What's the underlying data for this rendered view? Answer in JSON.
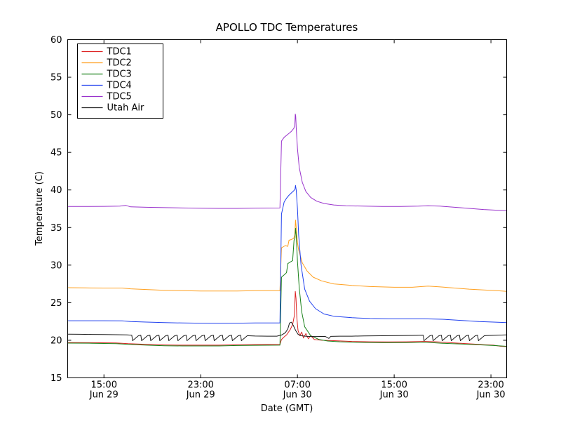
{
  "figure": {
    "background": "#ffffff",
    "frame_color": "#000000",
    "text_color": "#000000"
  },
  "chart_data": {
    "type": "line",
    "title": "APOLLO TDC Temperatures",
    "xlabel": "Date (GMT)",
    "ylabel": "Temperature (C)",
    "grid": false,
    "legend_position": "upper-left",
    "ylim": [
      15,
      60
    ],
    "xlim": [
      12,
      48.3
    ],
    "y_ticks": [
      15,
      20,
      25,
      30,
      35,
      40,
      45,
      50,
      55,
      60
    ],
    "x_ticks": [
      {
        "x": 15,
        "line1": "15:00",
        "line2": "Jun 29"
      },
      {
        "x": 23,
        "line1": "23:00",
        "line2": "Jun 29"
      },
      {
        "x": 31,
        "line1": "07:00",
        "line2": "Jun 30"
      },
      {
        "x": 39,
        "line1": "15:00",
        "line2": "Jun 30"
      },
      {
        "x": 47,
        "line1": "23:00",
        "line2": "Jun 30"
      }
    ],
    "series": [
      {
        "name": "TDC1",
        "color": "#dd2222",
        "points": [
          [
            12,
            19.7
          ],
          [
            14,
            19.68
          ],
          [
            16,
            19.65
          ],
          [
            17,
            19.55
          ],
          [
            18.5,
            19.45
          ],
          [
            20,
            19.38
          ],
          [
            21.5,
            19.35
          ],
          [
            23,
            19.35
          ],
          [
            24.5,
            19.35
          ],
          [
            26,
            19.4
          ],
          [
            27.5,
            19.43
          ],
          [
            29.55,
            19.45
          ],
          [
            29.68,
            20.1
          ],
          [
            29.9,
            20.45
          ],
          [
            30.1,
            20.7
          ],
          [
            30.4,
            21.4
          ],
          [
            30.6,
            22.1
          ],
          [
            30.75,
            23.3
          ],
          [
            30.82,
            26.5
          ],
          [
            30.88,
            25.6
          ],
          [
            30.95,
            23.0
          ],
          [
            31.05,
            21.3
          ],
          [
            31.2,
            20.6
          ],
          [
            31.35,
            21.1
          ],
          [
            31.5,
            20.3
          ],
          [
            31.7,
            20.9
          ],
          [
            31.9,
            20.2
          ],
          [
            32.1,
            20.6
          ],
          [
            32.4,
            20.1
          ],
          [
            33,
            20.0
          ],
          [
            34,
            19.95
          ],
          [
            35.5,
            19.85
          ],
          [
            37,
            19.8
          ],
          [
            38.5,
            19.78
          ],
          [
            40,
            19.8
          ],
          [
            41.5,
            19.85
          ],
          [
            42.5,
            19.8
          ],
          [
            43.5,
            19.7
          ],
          [
            44.5,
            19.6
          ],
          [
            45.5,
            19.5
          ],
          [
            46.5,
            19.4
          ],
          [
            47.2,
            19.35
          ],
          [
            47.8,
            19.2
          ],
          [
            48.3,
            19.15
          ]
        ]
      },
      {
        "name": "TDC2",
        "color": "#ffa020",
        "points": [
          [
            12,
            27.0
          ],
          [
            13.5,
            26.97
          ],
          [
            15,
            26.95
          ],
          [
            16.5,
            26.95
          ],
          [
            17.2,
            26.85
          ],
          [
            18.5,
            26.75
          ],
          [
            20,
            26.65
          ],
          [
            21.5,
            26.6
          ],
          [
            23,
            26.55
          ],
          [
            24.5,
            26.55
          ],
          [
            26,
            26.55
          ],
          [
            27.5,
            26.6
          ],
          [
            29.55,
            26.6
          ],
          [
            29.68,
            32.3
          ],
          [
            30.0,
            32.6
          ],
          [
            30.2,
            32.5
          ],
          [
            30.3,
            33.3
          ],
          [
            30.5,
            33.4
          ],
          [
            30.7,
            33.6
          ],
          [
            30.78,
            34.0
          ],
          [
            30.84,
            36.0
          ],
          [
            30.9,
            35.0
          ],
          [
            31.0,
            33.0
          ],
          [
            31.1,
            32.0
          ],
          [
            31.4,
            30.3
          ],
          [
            31.8,
            29.2
          ],
          [
            32.3,
            28.4
          ],
          [
            33,
            27.9
          ],
          [
            34,
            27.5
          ],
          [
            35.5,
            27.3
          ],
          [
            37,
            27.15
          ],
          [
            39,
            27.05
          ],
          [
            40.5,
            27.05
          ],
          [
            41.8,
            27.2
          ],
          [
            42.8,
            27.1
          ],
          [
            44,
            26.95
          ],
          [
            45.2,
            26.8
          ],
          [
            46.4,
            26.7
          ],
          [
            47.5,
            26.6
          ],
          [
            48.3,
            26.5
          ]
        ]
      },
      {
        "name": "TDC3",
        "color": "#188018",
        "points": [
          [
            12,
            19.62
          ],
          [
            14,
            19.6
          ],
          [
            16,
            19.55
          ],
          [
            17,
            19.45
          ],
          [
            18.5,
            19.35
          ],
          [
            20,
            19.28
          ],
          [
            21.5,
            19.25
          ],
          [
            23,
            19.25
          ],
          [
            24.5,
            19.25
          ],
          [
            26,
            19.3
          ],
          [
            27.5,
            19.33
          ],
          [
            29.55,
            19.35
          ],
          [
            29.68,
            28.4
          ],
          [
            29.9,
            28.7
          ],
          [
            30.1,
            29.0
          ],
          [
            30.2,
            30.2
          ],
          [
            30.4,
            30.4
          ],
          [
            30.6,
            30.6
          ],
          [
            30.72,
            33.3
          ],
          [
            30.8,
            33.6
          ],
          [
            30.84,
            34.9
          ],
          [
            30.9,
            34.0
          ],
          [
            31.0,
            30.5
          ],
          [
            31.15,
            27.0
          ],
          [
            31.35,
            23.8
          ],
          [
            31.6,
            21.8
          ],
          [
            32.1,
            20.6
          ],
          [
            32.8,
            20.1
          ],
          [
            33.5,
            19.9
          ],
          [
            34.5,
            19.8
          ],
          [
            36,
            19.72
          ],
          [
            38,
            19.68
          ],
          [
            40,
            19.7
          ],
          [
            41.5,
            19.75
          ],
          [
            43,
            19.6
          ],
          [
            44.5,
            19.5
          ],
          [
            46,
            19.4
          ],
          [
            47.2,
            19.3
          ],
          [
            48.3,
            19.2
          ]
        ]
      },
      {
        "name": "TDC4",
        "color": "#2040ee",
        "points": [
          [
            12,
            22.6
          ],
          [
            13.5,
            22.6
          ],
          [
            15,
            22.6
          ],
          [
            16.5,
            22.58
          ],
          [
            17.2,
            22.5
          ],
          [
            18.5,
            22.42
          ],
          [
            20,
            22.35
          ],
          [
            21.5,
            22.3
          ],
          [
            23,
            22.27
          ],
          [
            24.5,
            22.25
          ],
          [
            26,
            22.27
          ],
          [
            27.5,
            22.3
          ],
          [
            29.55,
            22.3
          ],
          [
            29.68,
            36.8
          ],
          [
            29.9,
            38.4
          ],
          [
            30.1,
            38.9
          ],
          [
            30.3,
            39.3
          ],
          [
            30.5,
            39.6
          ],
          [
            30.7,
            39.9
          ],
          [
            30.8,
            40.1
          ],
          [
            30.84,
            40.6
          ],
          [
            30.9,
            40.0
          ],
          [
            31.0,
            37.5
          ],
          [
            31.1,
            34.0
          ],
          [
            31.3,
            30.0
          ],
          [
            31.6,
            26.8
          ],
          [
            32.0,
            25.2
          ],
          [
            32.5,
            24.2
          ],
          [
            33.2,
            23.5
          ],
          [
            34,
            23.2
          ],
          [
            35.5,
            23.0
          ],
          [
            37,
            22.9
          ],
          [
            38.5,
            22.85
          ],
          [
            40,
            22.85
          ],
          [
            41.5,
            22.85
          ],
          [
            43,
            22.8
          ],
          [
            44.5,
            22.65
          ],
          [
            46,
            22.5
          ],
          [
            47.2,
            22.42
          ],
          [
            48.3,
            22.35
          ]
        ]
      },
      {
        "name": "TDC5",
        "color": "#9932cc",
        "points": [
          [
            12,
            37.8
          ],
          [
            13.5,
            37.8
          ],
          [
            15,
            37.82
          ],
          [
            16.3,
            37.85
          ],
          [
            16.8,
            37.95
          ],
          [
            17.2,
            37.75
          ],
          [
            18.5,
            37.7
          ],
          [
            20,
            37.65
          ],
          [
            21.5,
            37.6
          ],
          [
            23,
            37.57
          ],
          [
            24.5,
            37.55
          ],
          [
            26,
            37.55
          ],
          [
            27.5,
            37.58
          ],
          [
            29.55,
            37.6
          ],
          [
            29.68,
            46.5
          ],
          [
            29.9,
            47.0
          ],
          [
            30.2,
            47.4
          ],
          [
            30.5,
            47.8
          ],
          [
            30.7,
            48.2
          ],
          [
            30.78,
            48.6
          ],
          [
            30.82,
            50.1
          ],
          [
            30.86,
            49.8
          ],
          [
            30.9,
            48.3
          ],
          [
            31.0,
            45.5
          ],
          [
            31.15,
            43.0
          ],
          [
            31.4,
            41.0
          ],
          [
            31.7,
            39.8
          ],
          [
            32.1,
            39.0
          ],
          [
            32.6,
            38.5
          ],
          [
            33.2,
            38.2
          ],
          [
            34,
            38.0
          ],
          [
            35,
            37.9
          ],
          [
            36.5,
            37.85
          ],
          [
            38,
            37.8
          ],
          [
            39.5,
            37.8
          ],
          [
            41,
            37.85
          ],
          [
            41.8,
            37.9
          ],
          [
            42.8,
            37.85
          ],
          [
            44,
            37.7
          ],
          [
            45.2,
            37.55
          ],
          [
            46.4,
            37.4
          ],
          [
            47.5,
            37.3
          ],
          [
            48.3,
            37.25
          ]
        ]
      },
      {
        "name": "Utah Air",
        "color": "#1a1a1a",
        "points": [
          [
            12,
            20.82
          ],
          [
            13,
            20.8
          ],
          [
            14,
            20.78
          ],
          [
            15,
            20.76
          ],
          [
            16,
            20.74
          ],
          [
            16.9,
            20.72
          ],
          [
            17.3,
            20.68
          ],
          [
            17.37,
            19.95
          ],
          [
            17.85,
            20.6
          ],
          [
            18.05,
            20.68
          ],
          [
            18.12,
            19.95
          ],
          [
            18.6,
            20.6
          ],
          [
            18.8,
            20.68
          ],
          [
            18.87,
            19.95
          ],
          [
            19.35,
            20.6
          ],
          [
            19.55,
            20.68
          ],
          [
            19.62,
            19.95
          ],
          [
            20.1,
            20.6
          ],
          [
            20.3,
            20.68
          ],
          [
            20.37,
            19.95
          ],
          [
            20.85,
            20.6
          ],
          [
            21.05,
            20.68
          ],
          [
            21.12,
            19.95
          ],
          [
            21.6,
            20.6
          ],
          [
            21.8,
            20.68
          ],
          [
            21.87,
            19.95
          ],
          [
            22.35,
            20.6
          ],
          [
            22.55,
            20.68
          ],
          [
            22.62,
            19.95
          ],
          [
            23.1,
            20.6
          ],
          [
            23.3,
            20.68
          ],
          [
            23.37,
            19.95
          ],
          [
            23.85,
            20.6
          ],
          [
            24.05,
            20.68
          ],
          [
            24.12,
            19.95
          ],
          [
            24.6,
            20.6
          ],
          [
            24.8,
            20.68
          ],
          [
            24.87,
            19.95
          ],
          [
            25.35,
            20.6
          ],
          [
            25.55,
            20.68
          ],
          [
            25.62,
            19.95
          ],
          [
            26.1,
            20.6
          ],
          [
            26.3,
            20.68
          ],
          [
            26.37,
            19.95
          ],
          [
            26.85,
            20.6
          ],
          [
            26.95,
            20.6
          ],
          [
            27.5,
            20.56
          ],
          [
            28.5,
            20.55
          ],
          [
            29.3,
            20.55
          ],
          [
            29.7,
            20.7
          ],
          [
            30.0,
            21.0
          ],
          [
            30.2,
            21.5
          ],
          [
            30.35,
            22.3
          ],
          [
            30.5,
            22.4
          ],
          [
            30.65,
            22.0
          ],
          [
            30.85,
            21.3
          ],
          [
            31.05,
            20.8
          ],
          [
            31.3,
            20.6
          ],
          [
            31.8,
            20.52
          ],
          [
            32.5,
            20.5
          ],
          [
            33.3,
            20.52
          ],
          [
            33.6,
            20.25
          ],
          [
            33.75,
            20.52
          ],
          [
            34.5,
            20.55
          ],
          [
            35.5,
            20.55
          ],
          [
            36.5,
            20.58
          ],
          [
            38,
            20.6
          ],
          [
            39.5,
            20.62
          ],
          [
            40.8,
            20.65
          ],
          [
            41.4,
            20.68
          ],
          [
            41.47,
            19.95
          ],
          [
            41.95,
            20.6
          ],
          [
            42.15,
            20.68
          ],
          [
            42.22,
            19.95
          ],
          [
            42.7,
            20.6
          ],
          [
            42.9,
            20.68
          ],
          [
            42.97,
            19.95
          ],
          [
            43.45,
            20.6
          ],
          [
            43.65,
            20.68
          ],
          [
            43.72,
            19.95
          ],
          [
            44.2,
            20.6
          ],
          [
            44.4,
            20.68
          ],
          [
            44.47,
            19.95
          ],
          [
            44.95,
            20.6
          ],
          [
            45.15,
            20.68
          ],
          [
            45.22,
            19.95
          ],
          [
            45.7,
            20.6
          ],
          [
            45.9,
            20.68
          ],
          [
            45.97,
            19.95
          ],
          [
            46.45,
            20.6
          ],
          [
            46.6,
            20.62
          ],
          [
            47.3,
            20.66
          ],
          [
            48.3,
            20.72
          ]
        ]
      }
    ]
  }
}
